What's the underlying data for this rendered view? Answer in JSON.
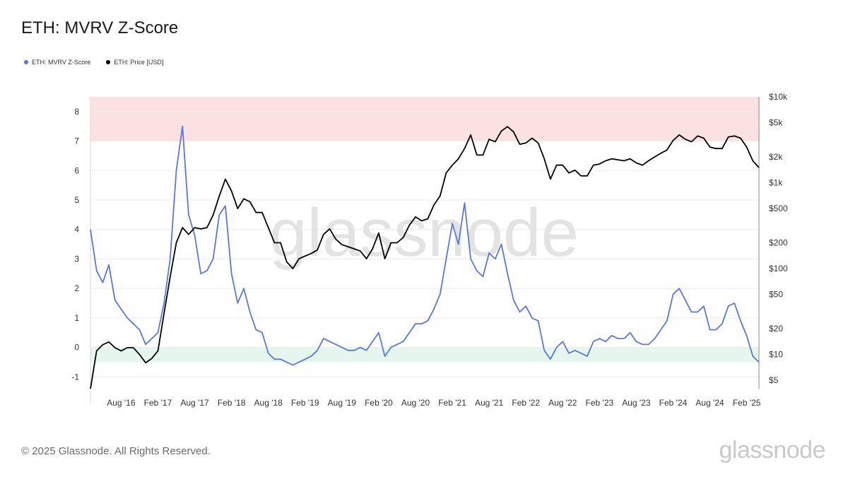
{
  "header": {
    "title": "ETH: MVRV Z-Score"
  },
  "legend": [
    {
      "label": "ETH: MVRV Z-Score",
      "color": "#5b78d6"
    },
    {
      "label": "ETH: Price [USD]",
      "color": "#000000"
    }
  ],
  "footer": {
    "copyright": "© 2025 Glassnode. All Rights Reserved.",
    "brand": "glassnode"
  },
  "watermark": "glassnode",
  "chart_data": {
    "type": "line",
    "title": "ETH: MVRV Z-Score",
    "x_range": [
      "2016-03",
      "2025-04"
    ],
    "x_ticks": [
      "Aug '16",
      "Feb '17",
      "Aug '17",
      "Feb '18",
      "Aug '18",
      "Feb '19",
      "Aug '19",
      "Feb '20",
      "Aug '20",
      "Feb '21",
      "Aug '21",
      "Feb '22",
      "Aug '22",
      "Feb '23",
      "Aug '23",
      "Feb '24",
      "Aug '24",
      "Feb '25"
    ],
    "y_left": {
      "ticks": [
        "-1",
        "0",
        "1",
        "2",
        "3",
        "4",
        "5",
        "6",
        "7",
        "8"
      ],
      "range": [
        -1.4,
        8.5
      ]
    },
    "y_right": {
      "scale": "log",
      "ticks": [
        "$5",
        "$10",
        "$20",
        "$50",
        "$100",
        "$200",
        "$500",
        "$1k",
        "$2k",
        "$5k",
        "$10k"
      ],
      "tick_values": [
        5,
        10,
        20,
        50,
        100,
        200,
        500,
        1000,
        2000,
        5000,
        10000
      ],
      "range": [
        4,
        10000
      ]
    },
    "zones": [
      {
        "name": "overvalued",
        "y_from": 7,
        "y_to": 8.5,
        "color": "#fbe1e1"
      },
      {
        "name": "undervalued",
        "y_from": -0.5,
        "y_to": 0,
        "color": "#e4f6ee"
      }
    ],
    "grid": true,
    "legend_position": "top-left",
    "series": [
      {
        "name": "ETH: MVRV Z-Score",
        "axis": "left",
        "color": "#5b78d6",
        "x": [
          "2016-03",
          "2016-04",
          "2016-05",
          "2016-06",
          "2016-07",
          "2016-08",
          "2016-09",
          "2016-10",
          "2016-11",
          "2016-12",
          "2017-01",
          "2017-02",
          "2017-03",
          "2017-04",
          "2017-05",
          "2017-06",
          "2017-07",
          "2017-08",
          "2017-09",
          "2017-10",
          "2017-11",
          "2017-12",
          "2018-01",
          "2018-02",
          "2018-03",
          "2018-04",
          "2018-05",
          "2018-06",
          "2018-07",
          "2018-08",
          "2018-09",
          "2018-10",
          "2018-11",
          "2018-12",
          "2019-01",
          "2019-02",
          "2019-03",
          "2019-04",
          "2019-05",
          "2019-06",
          "2019-07",
          "2019-08",
          "2019-09",
          "2019-10",
          "2019-11",
          "2019-12",
          "2020-01",
          "2020-02",
          "2020-03",
          "2020-04",
          "2020-05",
          "2020-06",
          "2020-07",
          "2020-08",
          "2020-09",
          "2020-10",
          "2020-11",
          "2020-12",
          "2021-01",
          "2021-02",
          "2021-03",
          "2021-04",
          "2021-05",
          "2021-06",
          "2021-07",
          "2021-08",
          "2021-09",
          "2021-10",
          "2021-11",
          "2021-12",
          "2022-01",
          "2022-02",
          "2022-03",
          "2022-04",
          "2022-05",
          "2022-06",
          "2022-07",
          "2022-08",
          "2022-09",
          "2022-10",
          "2022-11",
          "2022-12",
          "2023-01",
          "2023-02",
          "2023-03",
          "2023-04",
          "2023-05",
          "2023-06",
          "2023-07",
          "2023-08",
          "2023-09",
          "2023-10",
          "2023-11",
          "2023-12",
          "2024-01",
          "2024-02",
          "2024-03",
          "2024-04",
          "2024-05",
          "2024-06",
          "2024-07",
          "2024-08",
          "2024-09",
          "2024-10",
          "2024-11",
          "2024-12",
          "2025-01",
          "2025-02",
          "2025-03",
          "2025-04"
        ],
        "y": [
          4.0,
          2.6,
          2.2,
          2.8,
          1.6,
          1.3,
          1.0,
          0.8,
          0.6,
          0.1,
          0.3,
          0.5,
          1.5,
          3.0,
          6.0,
          7.5,
          4.5,
          3.8,
          2.5,
          2.6,
          3.0,
          4.5,
          4.8,
          2.5,
          1.5,
          2.0,
          1.2,
          0.6,
          0.5,
          -0.2,
          -0.4,
          -0.4,
          -0.5,
          -0.6,
          -0.5,
          -0.4,
          -0.3,
          -0.1,
          0.3,
          0.2,
          0.1,
          0.0,
          -0.1,
          -0.1,
          0.0,
          -0.1,
          0.2,
          0.5,
          -0.3,
          0.0,
          0.1,
          0.2,
          0.5,
          0.8,
          0.8,
          0.9,
          1.3,
          1.8,
          3.0,
          4.2,
          3.5,
          4.9,
          3.0,
          2.6,
          2.4,
          3.2,
          3.0,
          3.5,
          2.5,
          1.6,
          1.2,
          1.4,
          1.0,
          0.9,
          -0.1,
          -0.4,
          0.0,
          0.2,
          -0.2,
          -0.1,
          -0.2,
          -0.3,
          0.2,
          0.3,
          0.2,
          0.4,
          0.3,
          0.3,
          0.5,
          0.2,
          0.1,
          0.1,
          0.3,
          0.6,
          0.9,
          1.8,
          2.0,
          1.6,
          1.2,
          1.2,
          1.4,
          0.6,
          0.6,
          0.8,
          1.4,
          1.5,
          0.9,
          0.4,
          -0.3,
          -0.5
        ]
      },
      {
        "name": "ETH: Price [USD]",
        "axis": "right",
        "color": "#000000",
        "x": [
          "2016-03",
          "2016-04",
          "2016-05",
          "2016-06",
          "2016-07",
          "2016-08",
          "2016-09",
          "2016-10",
          "2016-11",
          "2016-12",
          "2017-01",
          "2017-02",
          "2017-03",
          "2017-04",
          "2017-05",
          "2017-06",
          "2017-07",
          "2017-08",
          "2017-09",
          "2017-10",
          "2017-11",
          "2017-12",
          "2018-01",
          "2018-02",
          "2018-03",
          "2018-04",
          "2018-05",
          "2018-06",
          "2018-07",
          "2018-08",
          "2018-09",
          "2018-10",
          "2018-11",
          "2018-12",
          "2019-01",
          "2019-02",
          "2019-03",
          "2019-04",
          "2019-05",
          "2019-06",
          "2019-07",
          "2019-08",
          "2019-09",
          "2019-10",
          "2019-11",
          "2019-12",
          "2020-01",
          "2020-02",
          "2020-03",
          "2020-04",
          "2020-05",
          "2020-06",
          "2020-07",
          "2020-08",
          "2020-09",
          "2020-10",
          "2020-11",
          "2020-12",
          "2021-01",
          "2021-02",
          "2021-03",
          "2021-04",
          "2021-05",
          "2021-06",
          "2021-07",
          "2021-08",
          "2021-09",
          "2021-10",
          "2021-11",
          "2021-12",
          "2022-01",
          "2022-02",
          "2022-03",
          "2022-04",
          "2022-05",
          "2022-06",
          "2022-07",
          "2022-08",
          "2022-09",
          "2022-10",
          "2022-11",
          "2022-12",
          "2023-01",
          "2023-02",
          "2023-03",
          "2023-04",
          "2023-05",
          "2023-06",
          "2023-07",
          "2023-08",
          "2023-09",
          "2023-10",
          "2023-11",
          "2023-12",
          "2024-01",
          "2024-02",
          "2024-03",
          "2024-04",
          "2024-05",
          "2024-06",
          "2024-07",
          "2024-08",
          "2024-09",
          "2024-10",
          "2024-11",
          "2024-12",
          "2025-01",
          "2025-02",
          "2025-03",
          "2025-04"
        ],
        "y": [
          4,
          11,
          13,
          14,
          12,
          11,
          12,
          12,
          10,
          8,
          9,
          11,
          30,
          80,
          200,
          300,
          250,
          300,
          290,
          300,
          420,
          700,
          1100,
          800,
          500,
          650,
          600,
          450,
          450,
          300,
          200,
          200,
          120,
          100,
          130,
          140,
          150,
          165,
          250,
          290,
          220,
          190,
          180,
          170,
          160,
          130,
          170,
          260,
          130,
          200,
          200,
          230,
          320,
          400,
          360,
          380,
          550,
          700,
          1300,
          1600,
          1900,
          2500,
          3600,
          2100,
          2100,
          3200,
          3000,
          4000,
          4500,
          3900,
          2800,
          2900,
          3300,
          2900,
          1900,
          1100,
          1600,
          1600,
          1300,
          1400,
          1200,
          1200,
          1600,
          1650,
          1800,
          1900,
          1850,
          1800,
          1900,
          1700,
          1600,
          1800,
          2000,
          2200,
          2400,
          3100,
          3600,
          3200,
          3000,
          3500,
          3300,
          2600,
          2500,
          2500,
          3400,
          3500,
          3300,
          2600,
          1800,
          1500
        ]
      }
    ]
  }
}
